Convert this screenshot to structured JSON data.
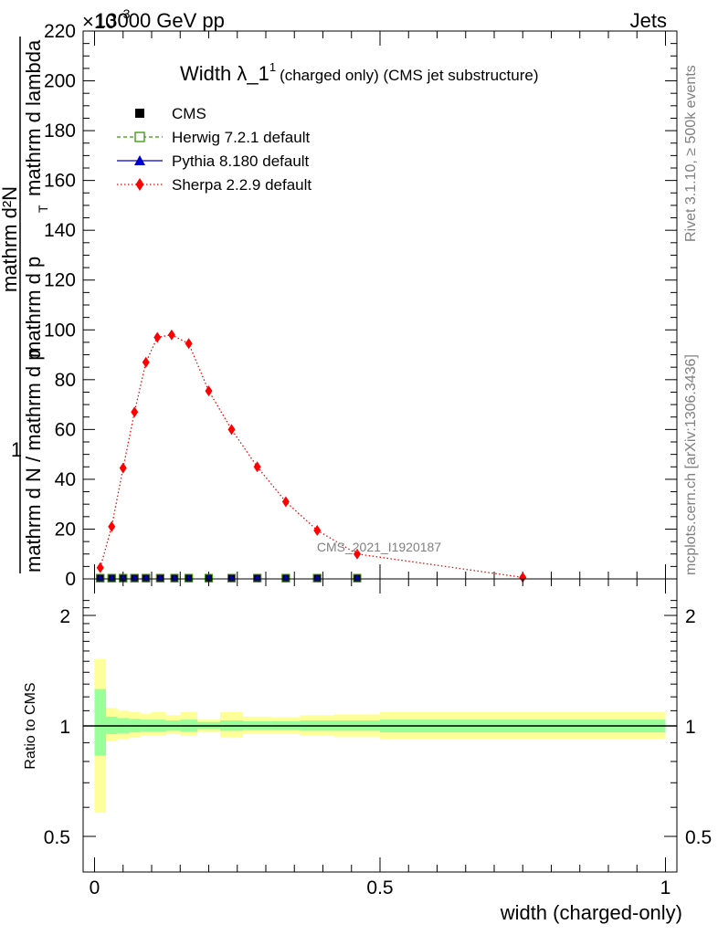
{
  "header": {
    "energy_label": "13000 GeV pp",
    "category_label": "Jets",
    "exponent_label": "×10",
    "exponent_power": "-3"
  },
  "side_labels": {
    "rivet": "Rivet 3.1.10, ≥ 500k events",
    "source": "mcplots.cern.ch [arXiv:1306.3436]"
  },
  "watermark": "CMS_2021_I1920187",
  "chart_data": [
    {
      "type": "line",
      "title": "Width λ_1",
      "title_sup": "1",
      "subtitle": "(charged only) (CMS jet substructure)",
      "ylabel_top": "1",
      "ylabel_num": "mathrm d²N",
      "ylabel_den": "mathrm d N / mathrm d p",
      "ylabel_mid": "mathrm d p",
      "ylabel_tail": "mathrm d lambda",
      "ylabel_sub": "T",
      "ylim": [
        0,
        220
      ],
      "yticks": [
        0,
        20,
        40,
        60,
        80,
        100,
        120,
        140,
        160,
        180,
        200,
        220
      ],
      "xlim": [
        -0.02,
        1.02
      ],
      "legend_position": "top-left",
      "legend": [
        {
          "name": "CMS",
          "color": "#000000",
          "marker": "square"
        },
        {
          "name": "Herwig 7.2.1 default",
          "color": "#339900",
          "marker": "open-square"
        },
        {
          "name": "Pythia 8.180 default",
          "color": "#0000cc",
          "marker": "triangle"
        },
        {
          "name": "Sherpa 2.2.9 default",
          "color": "#ff0000",
          "marker": "diamond"
        }
      ],
      "series": [
        {
          "name": "CMS",
          "x": [
            0.01,
            0.03,
            0.05,
            0.07,
            0.09,
            0.115,
            0.14,
            0.165,
            0.2,
            0.24,
            0.285,
            0.335,
            0.39,
            0.46
          ],
          "values": [
            0.3,
            0.3,
            0.3,
            0.3,
            0.3,
            0.3,
            0.3,
            0.3,
            0.3,
            0.3,
            0.3,
            0.3,
            0.3,
            0.3
          ]
        },
        {
          "name": "Sherpa 2.2.9 default",
          "x": [
            0.01,
            0.03,
            0.05,
            0.07,
            0.09,
            0.11,
            0.135,
            0.165,
            0.2,
            0.24,
            0.285,
            0.335,
            0.39,
            0.46,
            0.75
          ],
          "values": [
            4.5,
            21,
            44.5,
            67,
            87,
            97,
            98,
            94.5,
            75.5,
            60,
            45,
            31,
            19.5,
            10,
            0.6
          ]
        }
      ]
    },
    {
      "type": "area",
      "ylabel": "Ratio to CMS",
      "xlabel": "width (charged-only)",
      "xlim": [
        -0.02,
        1.02
      ],
      "xticks": [
        0,
        0.5,
        1
      ],
      "xtick_labels": [
        "0",
        "0.5",
        "1"
      ],
      "ylim": [
        0.4,
        2.3
      ],
      "ytick_labels": [
        "0.5",
        "1",
        "2"
      ],
      "reference": 1,
      "band_colors": {
        "stat": "#99ff99",
        "total": "#ffff99"
      },
      "bins": [
        {
          "lo": 0.0,
          "hi": 0.02,
          "stat": [
            0.83,
            1.26
          ],
          "total": [
            0.58,
            1.52
          ]
        },
        {
          "lo": 0.02,
          "hi": 0.04,
          "stat": [
            0.95,
            1.06
          ],
          "total": [
            0.91,
            1.12
          ]
        },
        {
          "lo": 0.04,
          "hi": 0.06,
          "stat": [
            0.955,
            1.05
          ],
          "total": [
            0.92,
            1.1
          ]
        },
        {
          "lo": 0.06,
          "hi": 0.08,
          "stat": [
            0.96,
            1.045
          ],
          "total": [
            0.93,
            1.09
          ]
        },
        {
          "lo": 0.08,
          "hi": 0.1,
          "stat": [
            0.965,
            1.04
          ],
          "total": [
            0.94,
            1.08
          ]
        },
        {
          "lo": 0.1,
          "hi": 0.125,
          "stat": [
            0.965,
            1.04
          ],
          "total": [
            0.94,
            1.09
          ]
        },
        {
          "lo": 0.125,
          "hi": 0.15,
          "stat": [
            0.97,
            1.035
          ],
          "total": [
            0.95,
            1.07
          ]
        },
        {
          "lo": 0.15,
          "hi": 0.18,
          "stat": [
            0.965,
            1.04
          ],
          "total": [
            0.94,
            1.09
          ]
        },
        {
          "lo": 0.18,
          "hi": 0.22,
          "stat": [
            0.98,
            1.025
          ],
          "total": [
            0.96,
            1.04
          ]
        },
        {
          "lo": 0.22,
          "hi": 0.26,
          "stat": [
            0.97,
            1.035
          ],
          "total": [
            0.93,
            1.09
          ]
        },
        {
          "lo": 0.26,
          "hi": 0.31,
          "stat": [
            0.975,
            1.03
          ],
          "total": [
            0.955,
            1.06
          ]
        },
        {
          "lo": 0.31,
          "hi": 0.36,
          "stat": [
            0.975,
            1.03
          ],
          "total": [
            0.955,
            1.055
          ]
        },
        {
          "lo": 0.36,
          "hi": 0.42,
          "stat": [
            0.97,
            1.035
          ],
          "total": [
            0.94,
            1.07
          ]
        },
        {
          "lo": 0.42,
          "hi": 0.5,
          "stat": [
            0.97,
            1.035
          ],
          "total": [
            0.935,
            1.075
          ]
        },
        {
          "lo": 0.5,
          "hi": 1.0,
          "stat": [
            0.96,
            1.04
          ],
          "total": [
            0.92,
            1.09
          ]
        }
      ]
    }
  ]
}
